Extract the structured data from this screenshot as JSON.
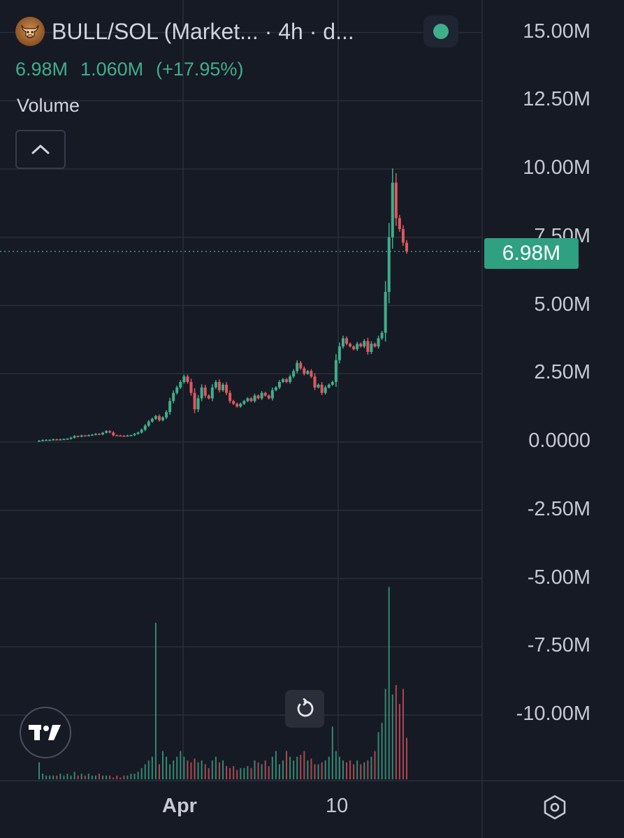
{
  "header": {
    "title": "BULL/SOL (Market... · 4h · d...",
    "last_value": "6.98M",
    "change": "1.060M",
    "change_pct": "(+17.95%)",
    "volume_label": "Volume"
  },
  "colors": {
    "background": "#161a25",
    "up": "#3fae8b",
    "down": "#e0575f",
    "grid": "#2a2e39",
    "price_tag": "#2fa080"
  },
  "icons": {
    "logo": "bull-coin-icon",
    "live": "live-status-dot-icon",
    "collapse": "chevron-up-icon",
    "reset": "reset-chart-icon",
    "settings": "settings-hexagon-icon",
    "brand": "tradingview-logo-icon"
  },
  "price_tag": "6.98M",
  "time_axis": {
    "apr": "Apr",
    "ten": "10"
  },
  "chart_data": {
    "type": "candlestick",
    "title": "BULL/SOL (Market... · 4h · d...",
    "y_tick_labels": [
      "15.00M",
      "12.50M",
      "10.00M",
      "7.50M",
      "5.00M",
      "2.50M",
      "0.0000",
      "-2.50M",
      "-5.00M",
      "-7.50M",
      "-10.00M"
    ],
    "y_ticks": [
      15000000,
      12500000,
      10000000,
      7500000,
      5000000,
      2500000,
      0,
      -2500000,
      -5000000,
      -7500000,
      -10000000
    ],
    "ylim": [
      -12500000,
      16000000
    ],
    "x_tick_labels": [
      "Apr",
      "10"
    ],
    "last_price": 6980000,
    "grid": true,
    "series": [
      {
        "name": "BULL/SOL",
        "close": [
          0.05,
          0.07,
          0.08,
          0.08,
          0.1,
          0.09,
          0.1,
          0.11,
          0.12,
          0.16,
          0.22,
          0.2,
          0.24,
          0.23,
          0.25,
          0.27,
          0.3,
          0.28,
          0.34,
          0.4,
          0.35,
          0.25,
          0.24,
          0.23,
          0.22,
          0.24,
          0.25,
          0.3,
          0.35,
          0.45,
          0.6,
          0.75,
          0.85,
          0.95,
          0.8,
          0.9,
          1.1,
          1.5,
          1.8,
          2.0,
          2.2,
          2.4,
          2.2,
          1.8,
          1.2,
          1.6,
          2.0,
          1.7,
          1.6,
          2.0,
          2.2,
          1.9,
          2.1,
          1.8,
          1.5,
          1.4,
          1.3,
          1.4,
          1.5,
          1.6,
          1.5,
          1.7,
          1.6,
          1.8,
          1.7,
          1.6,
          1.9,
          2.0,
          2.2,
          2.3,
          2.2,
          2.4,
          2.6,
          2.9,
          2.7,
          2.5,
          2.6,
          2.4,
          2.0,
          2.1,
          1.8,
          2.0,
          2.1,
          2.2,
          3.0,
          3.5,
          3.8,
          3.6,
          3.5,
          3.4,
          3.6,
          3.5,
          3.7,
          3.3,
          3.6,
          3.5,
          3.8,
          4.0,
          5.5,
          7.5,
          9.5,
          8.2,
          7.8,
          7.3,
          6.98
        ],
        "volume": [
          0.9,
          0.3,
          0.2,
          0.2,
          0.2,
          0.2,
          0.3,
          0.2,
          0.3,
          0.2,
          0.4,
          0.2,
          0.3,
          0.2,
          0.3,
          0.2,
          0.2,
          0.3,
          0.2,
          0.2,
          0.2,
          0.1,
          0.2,
          0.1,
          0.2,
          0.2,
          0.3,
          0.3,
          0.4,
          0.6,
          0.8,
          1.0,
          1.2,
          8.3,
          0.8,
          1.5,
          1.2,
          0.8,
          1.0,
          1.2,
          1.5,
          1.2,
          1.0,
          0.9,
          1.1,
          0.9,
          1.0,
          0.8,
          0.6,
          1.0,
          1.2,
          0.9,
          1.0,
          0.7,
          0.6,
          0.7,
          0.5,
          0.6,
          0.6,
          0.7,
          0.6,
          1.0,
          0.9,
          0.8,
          1.0,
          0.7,
          1.2,
          1.5,
          0.8,
          1.0,
          1.5,
          1.2,
          1.0,
          1.2,
          1.3,
          1.5,
          1.0,
          1.1,
          0.8,
          0.8,
          0.9,
          1.0,
          1.2,
          2.8,
          1.5,
          1.2,
          1.0,
          0.9,
          1.0,
          0.8,
          1.0,
          0.8,
          0.9,
          1.0,
          1.2,
          1.5,
          2.5,
          3.0,
          4.8,
          10.2,
          4.5,
          5.0,
          4.0,
          4.8,
          2.2
        ]
      }
    ]
  }
}
